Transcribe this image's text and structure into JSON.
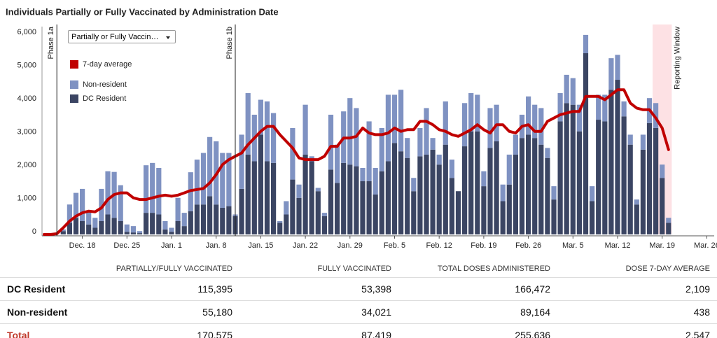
{
  "chart_data": {
    "type": "bar",
    "title": "Individuals Partially or Fully Vaccinated by Administration Date",
    "dropdown": "Partially or Fully Vaccin…",
    "stacked": true,
    "grid": false,
    "ylim": [
      0,
      6250
    ],
    "yticks": [
      0,
      {
        "value": 1000,
        "label": "1,000"
      },
      {
        "value": 2000,
        "label": "2,000"
      },
      {
        "value": 3000,
        "label": "3,000"
      },
      {
        "value": 4000,
        "label": "4,000"
      },
      {
        "value": 5000,
        "label": "5,000"
      },
      {
        "value": 6000,
        "label": "6,000"
      }
    ],
    "categories": [
      null,
      null,
      null,
      null,
      null,
      null,
      "Dec. 18",
      null,
      null,
      null,
      null,
      null,
      null,
      "Dec. 25",
      null,
      null,
      null,
      null,
      null,
      null,
      "Jan. 1",
      null,
      null,
      null,
      null,
      null,
      null,
      "Jan. 8",
      null,
      null,
      null,
      null,
      null,
      null,
      "Jan. 15",
      null,
      null,
      null,
      null,
      null,
      null,
      "Jan. 22",
      null,
      null,
      null,
      null,
      null,
      null,
      "Jan. 29",
      null,
      null,
      null,
      null,
      null,
      null,
      "Feb. 5",
      null,
      null,
      null,
      null,
      null,
      null,
      "Feb. 12",
      null,
      null,
      null,
      null,
      null,
      null,
      "Feb. 19",
      null,
      null,
      null,
      null,
      null,
      null,
      "Feb. 26",
      null,
      null,
      null,
      null,
      null,
      null,
      "Mar. 5",
      null,
      null,
      null,
      null,
      null,
      null,
      "Mar. 12",
      null,
      null,
      null,
      null,
      null,
      null,
      "Mar. 19",
      null,
      null,
      null,
      null,
      null,
      null,
      "Mar. 26",
      null
    ],
    "series": [
      {
        "name": "DC Resident",
        "color": "#3b4563",
        "values": [
          0,
          0,
          0,
          100,
          350,
          500,
          400,
          300,
          200,
          400,
          600,
          500,
          400,
          80,
          60,
          40,
          650,
          650,
          600,
          150,
          80,
          400,
          250,
          700,
          900,
          900,
          1150,
          900,
          800,
          850,
          550,
          1370,
          2400,
          2200,
          3000,
          2200,
          2150,
          350,
          600,
          1650,
          1100,
          2400,
          2200,
          1300,
          550,
          1950,
          1550,
          2150,
          2100,
          2050,
          1600,
          1600,
          1200,
          1900,
          2200,
          2750,
          2500,
          2300,
          1300,
          2350,
          2400,
          2550,
          2100,
          2700,
          1700,
          1300,
          2650,
          3100,
          3100,
          1450,
          2600,
          2800,
          1000,
          1500,
          2400,
          2900,
          3000,
          2900,
          2700,
          2300,
          1050,
          3400,
          3950,
          3900,
          3100,
          5450,
          1000,
          3450,
          3400,
          4350,
          4650,
          3550,
          2700,
          900,
          2550,
          3350,
          3200,
          1700,
          350,
          0,
          0,
          0,
          0,
          0,
          0,
          0
        ]
      },
      {
        "name": "Non-resident",
        "color": "#7f92c2",
        "values": [
          0,
          0,
          0,
          50,
          550,
          750,
          970,
          400,
          300,
          970,
          1300,
          1380,
          1080,
          220,
          190,
          60,
          1430,
          1500,
          1400,
          250,
          120,
          700,
          400,
          1170,
          1350,
          1550,
          1780,
          1900,
          1650,
          1600,
          50,
          1630,
          1850,
          1400,
          1050,
          1800,
          1500,
          50,
          400,
          1550,
          400,
          1500,
          150,
          100,
          100,
          1650,
          1150,
          1550,
          2000,
          1750,
          400,
          1800,
          800,
          1300,
          2000,
          1450,
          1850,
          600,
          400,
          850,
          1400,
          350,
          300,
          1300,
          550,
          0,
          1300,
          1150,
          1100,
          450,
          1200,
          1100,
          500,
          900,
          600,
          700,
          1150,
          1000,
          1100,
          300,
          400,
          850,
          850,
          800,
          800,
          550,
          450,
          750,
          800,
          950,
          750,
          450,
          300,
          150,
          450,
          750,
          750,
          400,
          150,
          0,
          0,
          0,
          0,
          0,
          0,
          0
        ]
      },
      {
        "name": "7-day average",
        "type": "line",
        "color": "#c00000",
        "values": [
          0,
          0,
          20,
          200,
          400,
          550,
          650,
          700,
          680,
          800,
          1050,
          1200,
          1250,
          1250,
          1100,
          1050,
          1050,
          1100,
          1150,
          1180,
          1150,
          1180,
          1250,
          1320,
          1350,
          1380,
          1550,
          1800,
          2100,
          2250,
          2350,
          2450,
          2700,
          2900,
          3100,
          3250,
          3250,
          3000,
          2800,
          2600,
          2300,
          2250,
          2250,
          2250,
          2350,
          2650,
          2650,
          2900,
          2900,
          2950,
          3200,
          3050,
          3000,
          3000,
          3050,
          3200,
          3100,
          3150,
          3150,
          3400,
          3400,
          3300,
          3150,
          3100,
          3000,
          2950,
          3050,
          3150,
          3300,
          3150,
          3050,
          3300,
          3300,
          3100,
          3050,
          3250,
          3300,
          3100,
          3100,
          3400,
          3500,
          3600,
          3650,
          3700,
          3700,
          4150,
          4150,
          4150,
          4050,
          4200,
          4350,
          4350,
          3950,
          3800,
          3750,
          3750,
          3500,
          3200,
          2550,
          null,
          null,
          null,
          null,
          null,
          null,
          null
        ]
      }
    ],
    "annotations": [
      {
        "label": "Phase 1a",
        "index": 2
      },
      {
        "label": "Phase 1b",
        "index": 30
      }
    ],
    "window": {
      "label": "Reporting Window",
      "start": 96,
      "end": 98,
      "color": "#fde1e4"
    }
  },
  "table": {
    "columns": [
      "PARTIALLY/FULLY VACCINATED",
      "FULLY VACCINATED",
      "TOTAL DOSES ADMINISTERED",
      "DOSE 7-DAY AVERAGE"
    ],
    "rows": [
      {
        "label": "DC Resident",
        "values": [
          "115,395",
          "53,398",
          "166,472",
          "2,109"
        ]
      },
      {
        "label": "Non-resident",
        "values": [
          "55,180",
          "34,021",
          "89,164",
          "438"
        ]
      },
      {
        "label": "Total",
        "values": [
          "170,575",
          "87,419",
          "255,636",
          "2,547"
        ]
      }
    ]
  }
}
